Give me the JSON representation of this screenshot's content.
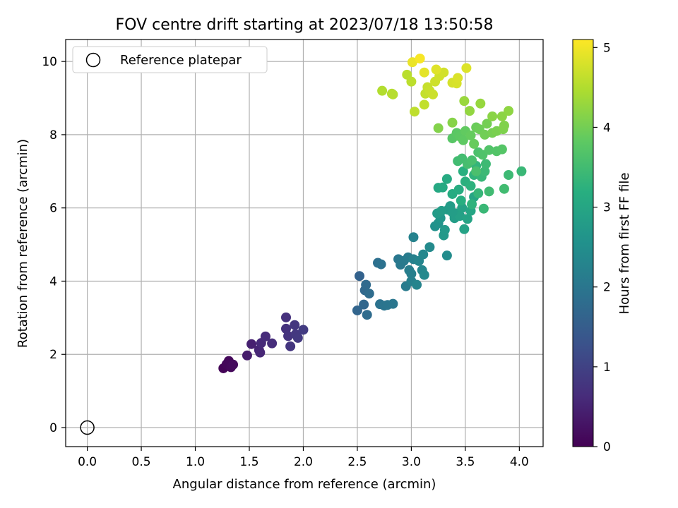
{
  "chart_data": {
    "type": "scatter",
    "title": "FOV centre drift starting at 2023/07/18 13:50:58",
    "xlabel": "Angular distance from reference (arcmin)",
    "ylabel": "Rotation from reference (arcmin)",
    "xlim": [
      -0.2,
      4.22
    ],
    "ylim": [
      -0.52,
      10.6
    ],
    "xticks": [
      "0.0",
      "0.5",
      "1.0",
      "1.5",
      "2.0",
      "2.5",
      "3.0",
      "3.5",
      "4.0"
    ],
    "yticks": [
      "0",
      "2",
      "4",
      "6",
      "8",
      "10"
    ],
    "grid": true,
    "legend": {
      "position": "top-left",
      "label": "Reference platepar"
    },
    "reference_point": {
      "x": 0.0,
      "y": 0.0
    },
    "colorbar": {
      "label": "Hours from first FF file",
      "range": [
        0,
        5.1
      ],
      "ticks": [
        "0",
        "1",
        "2",
        "3",
        "4",
        "5"
      ],
      "colormap": "viridis"
    },
    "series": [
      {
        "points": [
          {
            "x": 1.26,
            "y": 1.62,
            "h": 0.05
          },
          {
            "x": 1.29,
            "y": 1.73,
            "h": 0.08
          },
          {
            "x": 1.31,
            "y": 1.82,
            "h": 0.1
          },
          {
            "x": 1.33,
            "y": 1.65,
            "h": 0.12
          },
          {
            "x": 1.35,
            "y": 1.72,
            "h": 0.15
          },
          {
            "x": 1.48,
            "y": 1.97,
            "h": 0.4
          },
          {
            "x": 1.52,
            "y": 2.28,
            "h": 0.45
          },
          {
            "x": 1.59,
            "y": 2.12,
            "h": 0.5
          },
          {
            "x": 1.6,
            "y": 2.05,
            "h": 0.55
          },
          {
            "x": 1.61,
            "y": 2.31,
            "h": 0.6
          },
          {
            "x": 1.65,
            "y": 2.49,
            "h": 0.62
          },
          {
            "x": 1.71,
            "y": 2.3,
            "h": 0.65
          },
          {
            "x": 1.84,
            "y": 3.01,
            "h": 0.7
          },
          {
            "x": 1.84,
            "y": 2.7,
            "h": 0.72
          },
          {
            "x": 1.86,
            "y": 2.5,
            "h": 0.75
          },
          {
            "x": 1.88,
            "y": 2.22,
            "h": 0.78
          },
          {
            "x": 1.92,
            "y": 2.8,
            "h": 0.8
          },
          {
            "x": 1.93,
            "y": 2.55,
            "h": 0.82
          },
          {
            "x": 1.95,
            "y": 2.45,
            "h": 0.85
          },
          {
            "x": 2.0,
            "y": 2.67,
            "h": 0.88
          },
          {
            "x": 2.52,
            "y": 4.14,
            "h": 1.6
          },
          {
            "x": 2.5,
            "y": 3.2,
            "h": 1.65
          },
          {
            "x": 2.56,
            "y": 3.36,
            "h": 1.7
          },
          {
            "x": 2.57,
            "y": 3.75,
            "h": 1.72
          },
          {
            "x": 2.58,
            "y": 3.9,
            "h": 1.75
          },
          {
            "x": 2.59,
            "y": 3.08,
            "h": 1.78
          },
          {
            "x": 2.61,
            "y": 3.66,
            "h": 1.8
          },
          {
            "x": 2.69,
            "y": 4.5,
            "h": 1.85
          },
          {
            "x": 2.72,
            "y": 4.46,
            "h": 1.9
          },
          {
            "x": 2.71,
            "y": 3.37,
            "h": 1.92
          },
          {
            "x": 2.75,
            "y": 3.33,
            "h": 1.95
          },
          {
            "x": 2.78,
            "y": 3.35,
            "h": 1.97
          },
          {
            "x": 2.83,
            "y": 3.38,
            "h": 2.0
          },
          {
            "x": 2.88,
            "y": 4.6,
            "h": 2.02
          },
          {
            "x": 2.9,
            "y": 4.45,
            "h": 2.05
          },
          {
            "x": 2.93,
            "y": 4.55,
            "h": 2.08
          },
          {
            "x": 2.95,
            "y": 3.86,
            "h": 2.1
          },
          {
            "x": 2.97,
            "y": 4.65,
            "h": 2.12
          },
          {
            "x": 2.98,
            "y": 4.3,
            "h": 2.15
          },
          {
            "x": 3.0,
            "y": 4.2,
            "h": 2.18
          },
          {
            "x": 3.0,
            "y": 4.0,
            "h": 2.2
          },
          {
            "x": 3.02,
            "y": 4.6,
            "h": 2.22
          },
          {
            "x": 3.02,
            "y": 5.2,
            "h": 2.25
          },
          {
            "x": 3.05,
            "y": 3.9,
            "h": 2.28
          },
          {
            "x": 3.07,
            "y": 4.55,
            "h": 2.3
          },
          {
            "x": 3.1,
            "y": 4.3,
            "h": 2.32
          },
          {
            "x": 3.11,
            "y": 4.73,
            "h": 2.35
          },
          {
            "x": 3.12,
            "y": 4.17,
            "h": 2.38
          },
          {
            "x": 3.17,
            "y": 4.93,
            "h": 2.4
          },
          {
            "x": 3.33,
            "y": 4.7,
            "h": 2.45
          },
          {
            "x": 3.22,
            "y": 5.5,
            "h": 2.55
          },
          {
            "x": 3.25,
            "y": 5.58,
            "h": 2.6
          },
          {
            "x": 3.27,
            "y": 5.72,
            "h": 2.65
          },
          {
            "x": 3.3,
            "y": 5.25,
            "h": 2.7
          },
          {
            "x": 3.31,
            "y": 5.4,
            "h": 2.72
          },
          {
            "x": 3.34,
            "y": 5.95,
            "h": 2.75
          },
          {
            "x": 3.36,
            "y": 6.05,
            "h": 2.8
          },
          {
            "x": 3.4,
            "y": 5.72,
            "h": 2.82
          },
          {
            "x": 3.42,
            "y": 5.85,
            "h": 2.85
          },
          {
            "x": 3.45,
            "y": 5.78,
            "h": 2.88
          },
          {
            "x": 3.47,
            "y": 6.0,
            "h": 2.9
          },
          {
            "x": 3.49,
            "y": 5.42,
            "h": 2.92
          },
          {
            "x": 3.52,
            "y": 5.7,
            "h": 2.95
          },
          {
            "x": 3.55,
            "y": 5.92,
            "h": 2.98
          },
          {
            "x": 3.58,
            "y": 6.3,
            "h": 3.0
          },
          {
            "x": 3.24,
            "y": 5.85,
            "h": 2.78
          },
          {
            "x": 3.28,
            "y": 5.92,
            "h": 2.8
          },
          {
            "x": 3.38,
            "y": 5.88,
            "h": 2.82
          },
          {
            "x": 3.25,
            "y": 6.55,
            "h": 3.05
          },
          {
            "x": 3.29,
            "y": 6.56,
            "h": 3.08
          },
          {
            "x": 3.33,
            "y": 6.79,
            "h": 3.1
          },
          {
            "x": 3.38,
            "y": 6.38,
            "h": 3.12
          },
          {
            "x": 3.44,
            "y": 6.5,
            "h": 3.15
          },
          {
            "x": 3.46,
            "y": 6.2,
            "h": 3.18
          },
          {
            "x": 3.48,
            "y": 7.0,
            "h": 3.2
          },
          {
            "x": 3.5,
            "y": 6.72,
            "h": 3.22
          },
          {
            "x": 3.55,
            "y": 6.6,
            "h": 3.25
          },
          {
            "x": 3.56,
            "y": 6.1,
            "h": 3.28
          },
          {
            "x": 3.58,
            "y": 6.9,
            "h": 3.3
          },
          {
            "x": 3.6,
            "y": 7.15,
            "h": 3.32
          },
          {
            "x": 3.62,
            "y": 6.4,
            "h": 3.35
          },
          {
            "x": 3.65,
            "y": 6.85,
            "h": 3.38
          },
          {
            "x": 3.67,
            "y": 5.98,
            "h": 3.4
          },
          {
            "x": 3.68,
            "y": 7.0,
            "h": 3.42
          },
          {
            "x": 3.69,
            "y": 7.2,
            "h": 3.45
          },
          {
            "x": 3.72,
            "y": 6.45,
            "h": 3.48
          },
          {
            "x": 3.43,
            "y": 7.28,
            "h": 3.5
          },
          {
            "x": 3.47,
            "y": 7.35,
            "h": 3.52
          },
          {
            "x": 3.52,
            "y": 7.2,
            "h": 3.55
          },
          {
            "x": 3.56,
            "y": 7.3,
            "h": 3.58
          },
          {
            "x": 3.6,
            "y": 7.0,
            "h": 3.6
          },
          {
            "x": 3.62,
            "y": 7.52,
            "h": 3.62
          },
          {
            "x": 3.66,
            "y": 7.45,
            "h": 3.65
          },
          {
            "x": 3.72,
            "y": 7.58,
            "h": 3.68
          },
          {
            "x": 3.79,
            "y": 7.55,
            "h": 3.7
          },
          {
            "x": 3.84,
            "y": 7.6,
            "h": 3.72
          },
          {
            "x": 3.86,
            "y": 6.52,
            "h": 3.5
          },
          {
            "x": 3.9,
            "y": 6.9,
            "h": 3.45
          },
          {
            "x": 4.02,
            "y": 7.0,
            "h": 3.4
          },
          {
            "x": 3.38,
            "y": 7.9,
            "h": 3.75
          },
          {
            "x": 3.42,
            "y": 8.05,
            "h": 3.78
          },
          {
            "x": 3.45,
            "y": 7.95,
            "h": 3.8
          },
          {
            "x": 3.48,
            "y": 7.85,
            "h": 3.82
          },
          {
            "x": 3.5,
            "y": 8.1,
            "h": 3.85
          },
          {
            "x": 3.55,
            "y": 7.98,
            "h": 3.88
          },
          {
            "x": 3.58,
            "y": 7.75,
            "h": 3.9
          },
          {
            "x": 3.6,
            "y": 8.2,
            "h": 3.92
          },
          {
            "x": 3.63,
            "y": 8.15,
            "h": 3.95
          },
          {
            "x": 3.68,
            "y": 8.0,
            "h": 3.98
          },
          {
            "x": 3.7,
            "y": 8.3,
            "h": 4.0
          },
          {
            "x": 3.75,
            "y": 8.05,
            "h": 4.02
          },
          {
            "x": 3.79,
            "y": 8.1,
            "h": 4.05
          },
          {
            "x": 3.85,
            "y": 8.15,
            "h": 4.08
          },
          {
            "x": 3.86,
            "y": 8.25,
            "h": 4.1
          },
          {
            "x": 3.25,
            "y": 8.18,
            "h": 4.12
          },
          {
            "x": 3.38,
            "y": 8.33,
            "h": 4.15
          },
          {
            "x": 3.75,
            "y": 8.5,
            "h": 4.18
          },
          {
            "x": 3.84,
            "y": 8.5,
            "h": 4.2
          },
          {
            "x": 3.9,
            "y": 8.65,
            "h": 4.22
          },
          {
            "x": 3.54,
            "y": 8.65,
            "h": 4.25
          },
          {
            "x": 3.64,
            "y": 8.85,
            "h": 4.28
          },
          {
            "x": 3.49,
            "y": 8.92,
            "h": 4.3
          },
          {
            "x": 2.73,
            "y": 9.2,
            "h": 4.5
          },
          {
            "x": 2.82,
            "y": 9.12,
            "h": 4.52
          },
          {
            "x": 2.83,
            "y": 9.1,
            "h": 4.54
          },
          {
            "x": 2.96,
            "y": 9.64,
            "h": 4.56
          },
          {
            "x": 3.0,
            "y": 9.45,
            "h": 4.58
          },
          {
            "x": 3.03,
            "y": 8.63,
            "h": 4.6
          },
          {
            "x": 3.12,
            "y": 8.82,
            "h": 4.62
          },
          {
            "x": 3.13,
            "y": 9.12,
            "h": 4.64
          },
          {
            "x": 3.15,
            "y": 9.3,
            "h": 4.66
          },
          {
            "x": 3.17,
            "y": 9.2,
            "h": 4.68
          },
          {
            "x": 3.2,
            "y": 9.1,
            "h": 4.7
          },
          {
            "x": 3.22,
            "y": 9.45,
            "h": 4.72
          },
          {
            "x": 3.26,
            "y": 9.6,
            "h": 4.74
          },
          {
            "x": 3.3,
            "y": 9.7,
            "h": 4.76
          },
          {
            "x": 3.38,
            "y": 9.42,
            "h": 4.78
          },
          {
            "x": 3.42,
            "y": 9.4,
            "h": 4.8
          },
          {
            "x": 3.43,
            "y": 9.55,
            "h": 4.82
          },
          {
            "x": 3.51,
            "y": 9.82,
            "h": 4.84
          },
          {
            "x": 3.23,
            "y": 9.78,
            "h": 4.86
          },
          {
            "x": 3.12,
            "y": 9.7,
            "h": 4.9
          },
          {
            "x": 3.01,
            "y": 9.98,
            "h": 4.95
          },
          {
            "x": 3.08,
            "y": 10.08,
            "h": 5.05
          }
        ]
      }
    ]
  }
}
